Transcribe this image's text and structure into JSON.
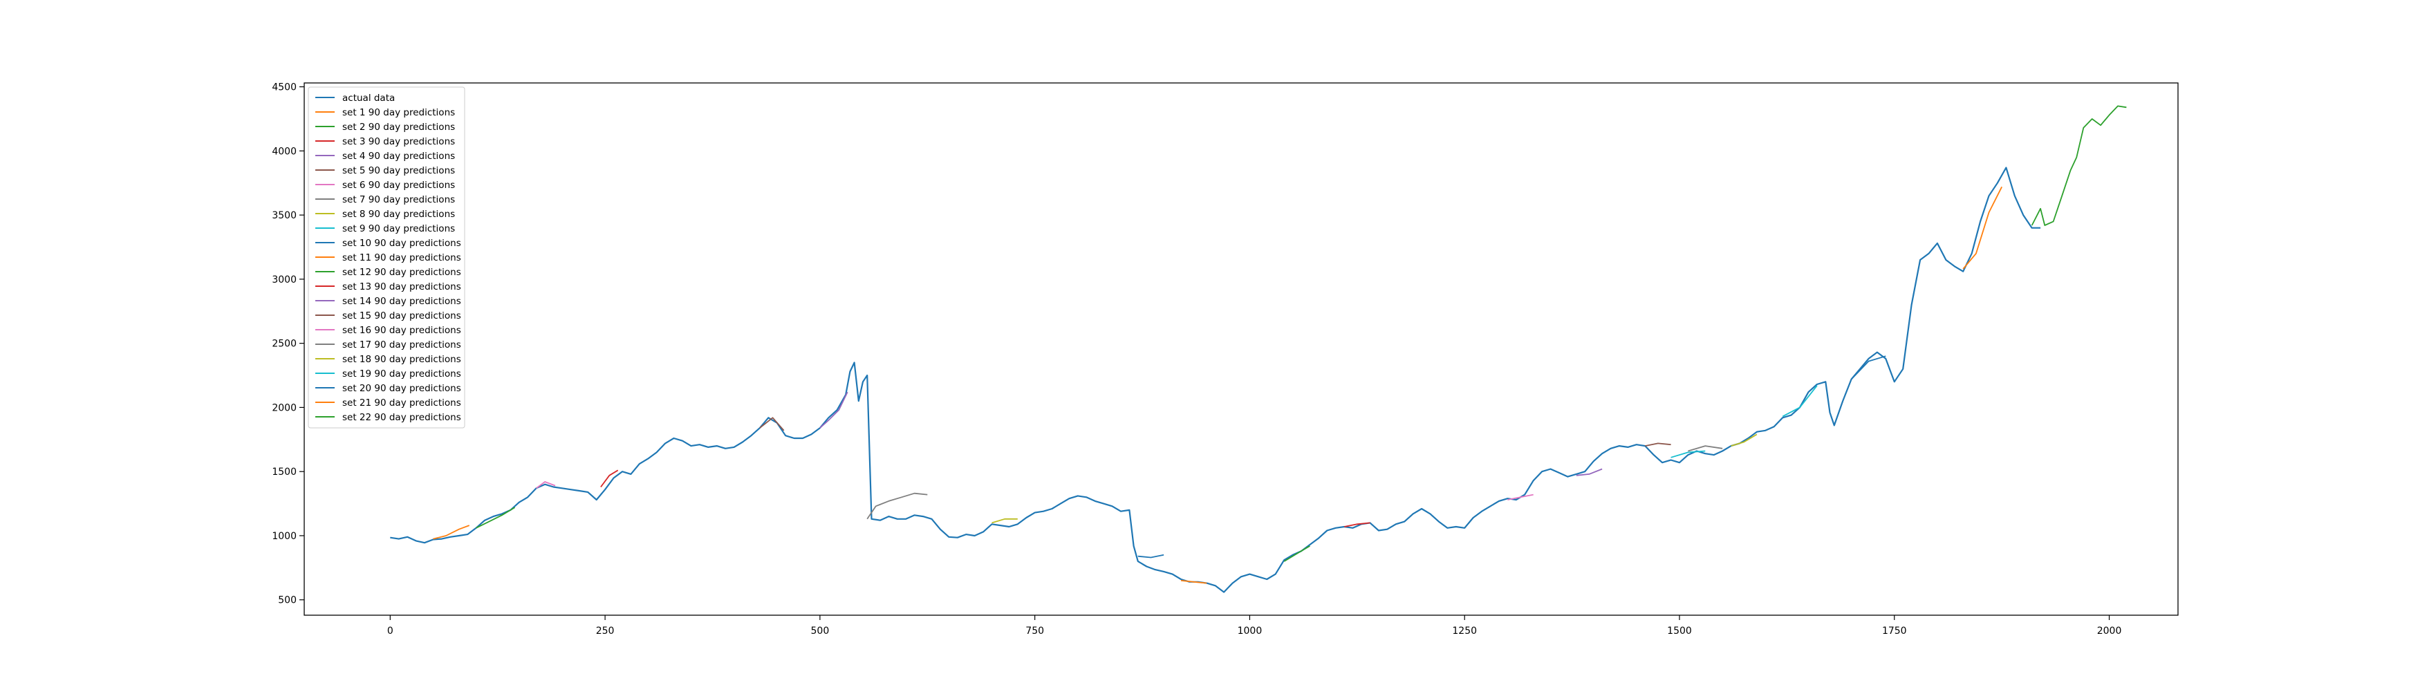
{
  "chart_data": {
    "type": "line",
    "title": "",
    "xlabel": "",
    "ylabel": "",
    "xlim": [
      -100,
      2080
    ],
    "ylim": [
      380,
      4530
    ],
    "x_ticks": [
      0,
      250,
      500,
      750,
      1000,
      1250,
      1500,
      1750,
      2000
    ],
    "y_ticks": [
      500,
      1000,
      1500,
      2000,
      2500,
      3000,
      3500,
      4000,
      4500
    ],
    "grid": false,
    "legend_position": "top-left",
    "actual": {
      "name": "actual data",
      "color": "#1f77b4",
      "points": [
        [
          0,
          985
        ],
        [
          10,
          975
        ],
        [
          20,
          990
        ],
        [
          30,
          960
        ],
        [
          40,
          945
        ],
        [
          50,
          970
        ],
        [
          60,
          975
        ],
        [
          70,
          990
        ],
        [
          80,
          1000
        ],
        [
          90,
          1010
        ],
        [
          100,
          1060
        ],
        [
          110,
          1120
        ],
        [
          120,
          1150
        ],
        [
          130,
          1170
        ],
        [
          140,
          1200
        ],
        [
          150,
          1260
        ],
        [
          160,
          1300
        ],
        [
          170,
          1370
        ],
        [
          180,
          1400
        ],
        [
          190,
          1380
        ],
        [
          200,
          1370
        ],
        [
          210,
          1360
        ],
        [
          220,
          1350
        ],
        [
          230,
          1340
        ],
        [
          240,
          1280
        ],
        [
          250,
          1360
        ],
        [
          260,
          1450
        ],
        [
          270,
          1500
        ],
        [
          280,
          1480
        ],
        [
          290,
          1560
        ],
        [
          300,
          1600
        ],
        [
          310,
          1650
        ],
        [
          320,
          1720
        ],
        [
          330,
          1760
        ],
        [
          340,
          1740
        ],
        [
          350,
          1700
        ],
        [
          360,
          1710
        ],
        [
          370,
          1690
        ],
        [
          380,
          1700
        ],
        [
          390,
          1680
        ],
        [
          400,
          1690
        ],
        [
          410,
          1730
        ],
        [
          420,
          1780
        ],
        [
          430,
          1840
        ],
        [
          440,
          1920
        ],
        [
          450,
          1880
        ],
        [
          460,
          1780
        ],
        [
          470,
          1760
        ],
        [
          480,
          1760
        ],
        [
          490,
          1790
        ],
        [
          500,
          1840
        ],
        [
          510,
          1920
        ],
        [
          520,
          1980
        ],
        [
          530,
          2100
        ],
        [
          535,
          2280
        ],
        [
          540,
          2350
        ],
        [
          545,
          2050
        ],
        [
          550,
          2200
        ],
        [
          555,
          2250
        ],
        [
          560,
          1130
        ],
        [
          570,
          1120
        ],
        [
          580,
          1150
        ],
        [
          590,
          1130
        ],
        [
          600,
          1130
        ],
        [
          610,
          1160
        ],
        [
          620,
          1150
        ],
        [
          630,
          1130
        ],
        [
          640,
          1050
        ],
        [
          650,
          990
        ],
        [
          660,
          985
        ],
        [
          670,
          1010
        ],
        [
          680,
          1000
        ],
        [
          690,
          1030
        ],
        [
          700,
          1090
        ],
        [
          710,
          1080
        ],
        [
          720,
          1070
        ],
        [
          730,
          1090
        ],
        [
          740,
          1140
        ],
        [
          750,
          1180
        ],
        [
          760,
          1190
        ],
        [
          770,
          1210
        ],
        [
          780,
          1250
        ],
        [
          790,
          1290
        ],
        [
          800,
          1310
        ],
        [
          810,
          1300
        ],
        [
          820,
          1270
        ],
        [
          830,
          1250
        ],
        [
          840,
          1230
        ],
        [
          850,
          1190
        ],
        [
          860,
          1200
        ],
        [
          865,
          920
        ],
        [
          870,
          800
        ],
        [
          880,
          760
        ],
        [
          890,
          735
        ],
        [
          900,
          720
        ],
        [
          910,
          700
        ],
        [
          920,
          660
        ],
        [
          930,
          640
        ],
        [
          940,
          640
        ],
        [
          950,
          630
        ],
        [
          960,
          610
        ],
        [
          970,
          560
        ],
        [
          980,
          630
        ],
        [
          990,
          680
        ],
        [
          1000,
          700
        ],
        [
          1010,
          680
        ],
        [
          1020,
          660
        ],
        [
          1030,
          700
        ],
        [
          1040,
          810
        ],
        [
          1050,
          850
        ],
        [
          1060,
          880
        ],
        [
          1070,
          930
        ],
        [
          1080,
          980
        ],
        [
          1090,
          1040
        ],
        [
          1100,
          1060
        ],
        [
          1110,
          1070
        ],
        [
          1120,
          1060
        ],
        [
          1130,
          1090
        ],
        [
          1140,
          1100
        ],
        [
          1150,
          1040
        ],
        [
          1160,
          1050
        ],
        [
          1170,
          1090
        ],
        [
          1180,
          1110
        ],
        [
          1190,
          1170
        ],
        [
          1200,
          1210
        ],
        [
          1210,
          1170
        ],
        [
          1220,
          1110
        ],
        [
          1230,
          1060
        ],
        [
          1240,
          1070
        ],
        [
          1250,
          1060
        ],
        [
          1260,
          1140
        ],
        [
          1270,
          1190
        ],
        [
          1280,
          1230
        ],
        [
          1290,
          1270
        ],
        [
          1300,
          1290
        ],
        [
          1310,
          1280
        ],
        [
          1320,
          1320
        ],
        [
          1330,
          1430
        ],
        [
          1340,
          1500
        ],
        [
          1350,
          1520
        ],
        [
          1360,
          1490
        ],
        [
          1370,
          1460
        ],
        [
          1380,
          1480
        ],
        [
          1390,
          1500
        ],
        [
          1400,
          1580
        ],
        [
          1410,
          1640
        ],
        [
          1420,
          1680
        ],
        [
          1430,
          1700
        ],
        [
          1440,
          1690
        ],
        [
          1450,
          1710
        ],
        [
          1460,
          1700
        ],
        [
          1470,
          1630
        ],
        [
          1480,
          1570
        ],
        [
          1490,
          1590
        ],
        [
          1500,
          1570
        ],
        [
          1510,
          1630
        ],
        [
          1520,
          1660
        ],
        [
          1530,
          1640
        ],
        [
          1540,
          1630
        ],
        [
          1550,
          1660
        ],
        [
          1560,
          1700
        ],
        [
          1570,
          1720
        ],
        [
          1580,
          1760
        ],
        [
          1590,
          1810
        ],
        [
          1600,
          1820
        ],
        [
          1610,
          1850
        ],
        [
          1620,
          1920
        ],
        [
          1630,
          1940
        ],
        [
          1640,
          2000
        ],
        [
          1650,
          2120
        ],
        [
          1660,
          2180
        ],
        [
          1670,
          2200
        ],
        [
          1675,
          1960
        ],
        [
          1680,
          1860
        ],
        [
          1690,
          2050
        ],
        [
          1700,
          2220
        ],
        [
          1710,
          2300
        ],
        [
          1720,
          2380
        ],
        [
          1730,
          2430
        ],
        [
          1740,
          2380
        ],
        [
          1750,
          2200
        ],
        [
          1760,
          2300
        ],
        [
          1770,
          2800
        ],
        [
          1780,
          3150
        ],
        [
          1790,
          3200
        ],
        [
          1800,
          3280
        ],
        [
          1810,
          3150
        ],
        [
          1820,
          3100
        ],
        [
          1830,
          3060
        ],
        [
          1840,
          3200
        ],
        [
          1850,
          3450
        ],
        [
          1860,
          3650
        ],
        [
          1870,
          3750
        ],
        [
          1880,
          3870
        ],
        [
          1890,
          3650
        ],
        [
          1900,
          3500
        ],
        [
          1910,
          3400
        ],
        [
          1920,
          3400
        ]
      ]
    },
    "predictions": [
      {
        "name": "set 1 90 day predictions",
        "color": "#ff7f0e",
        "points": [
          [
            50,
            975
          ],
          [
            65,
            1000
          ],
          [
            80,
            1050
          ],
          [
            92,
            1080
          ]
        ]
      },
      {
        "name": "set 2 90 day predictions",
        "color": "#2ca02c",
        "points": [
          [
            100,
            1060
          ],
          [
            115,
            1110
          ],
          [
            130,
            1160
          ],
          [
            145,
            1220
          ]
        ]
      },
      {
        "name": "set 3 90 day predictions",
        "color": "#d62728",
        "points": [
          [
            245,
            1380
          ],
          [
            255,
            1470
          ],
          [
            265,
            1510
          ]
        ]
      },
      {
        "name": "set 4 90 day predictions",
        "color": "#9467bd",
        "points": [
          [
            500,
            1840
          ],
          [
            510,
            1900
          ],
          [
            522,
            1980
          ],
          [
            532,
            2120
          ]
        ]
      },
      {
        "name": "set 5 90 day predictions",
        "color": "#8c564b",
        "points": [
          [
            430,
            1840
          ],
          [
            445,
            1920
          ],
          [
            458,
            1820
          ]
        ]
      },
      {
        "name": "set 6 90 day predictions",
        "color": "#e377c2",
        "points": [
          [
            170,
            1370
          ],
          [
            180,
            1420
          ],
          [
            192,
            1390
          ]
        ]
      },
      {
        "name": "set 7 90 day predictions",
        "color": "#7f7f7f",
        "points": [
          [
            555,
            1130
          ],
          [
            565,
            1230
          ],
          [
            580,
            1270
          ],
          [
            595,
            1300
          ],
          [
            610,
            1330
          ],
          [
            625,
            1320
          ]
        ]
      },
      {
        "name": "set 8 90 day predictions",
        "color": "#bcbd22",
        "points": [
          [
            700,
            1100
          ],
          [
            715,
            1130
          ],
          [
            730,
            1130
          ]
        ]
      },
      {
        "name": "set 9 90 day predictions",
        "color": "#17becf",
        "points": [
          [
            1490,
            1610
          ],
          [
            1510,
            1650
          ],
          [
            1530,
            1660
          ]
        ]
      },
      {
        "name": "set 10 90 day predictions",
        "color": "#1f77b4",
        "points": [
          [
            870,
            840
          ],
          [
            885,
            830
          ],
          [
            900,
            850
          ]
        ]
      },
      {
        "name": "set 11 90 day predictions",
        "color": "#ff7f0e",
        "points": [
          [
            920,
            650
          ],
          [
            935,
            640
          ],
          [
            950,
            630
          ]
        ]
      },
      {
        "name": "set 12 90 day predictions",
        "color": "#2ca02c",
        "points": [
          [
            1040,
            800
          ],
          [
            1055,
            860
          ],
          [
            1070,
            920
          ]
        ]
      },
      {
        "name": "set 13 90 day predictions",
        "color": "#d62728",
        "points": [
          [
            1110,
            1070
          ],
          [
            1125,
            1090
          ],
          [
            1140,
            1100
          ]
        ]
      },
      {
        "name": "set 14 90 day predictions",
        "color": "#9467bd",
        "points": [
          [
            1380,
            1470
          ],
          [
            1395,
            1480
          ],
          [
            1410,
            1520
          ]
        ]
      },
      {
        "name": "set 15 90 day predictions",
        "color": "#8c564b",
        "points": [
          [
            1460,
            1700
          ],
          [
            1475,
            1720
          ],
          [
            1490,
            1710
          ]
        ]
      },
      {
        "name": "set 16 90 day predictions",
        "color": "#e377c2",
        "points": [
          [
            1300,
            1280
          ],
          [
            1315,
            1300
          ],
          [
            1330,
            1320
          ]
        ]
      },
      {
        "name": "set 17 90 day predictions",
        "color": "#7f7f7f",
        "points": [
          [
            1510,
            1660
          ],
          [
            1530,
            1700
          ],
          [
            1550,
            1680
          ]
        ]
      },
      {
        "name": "set 18 90 day predictions",
        "color": "#bcbd22",
        "points": [
          [
            1560,
            1700
          ],
          [
            1575,
            1730
          ],
          [
            1590,
            1790
          ]
        ]
      },
      {
        "name": "set 19 90 day predictions",
        "color": "#17becf",
        "points": [
          [
            1620,
            1930
          ],
          [
            1640,
            2000
          ],
          [
            1660,
            2170
          ]
        ]
      },
      {
        "name": "set 20 90 day predictions",
        "color": "#1f77b4",
        "points": [
          [
            1700,
            2220
          ],
          [
            1720,
            2360
          ],
          [
            1740,
            2400
          ]
        ]
      },
      {
        "name": "set 21 90 day predictions",
        "color": "#ff7f0e",
        "points": [
          [
            1830,
            3080
          ],
          [
            1845,
            3200
          ],
          [
            1860,
            3520
          ],
          [
            1875,
            3720
          ]
        ]
      },
      {
        "name": "set 22 90 day predictions",
        "color": "#2ca02c",
        "points": [
          [
            1910,
            3420
          ],
          [
            1920,
            3550
          ],
          [
            1925,
            3420
          ],
          [
            1935,
            3450
          ],
          [
            1945,
            3650
          ],
          [
            1955,
            3850
          ],
          [
            1962,
            3950
          ],
          [
            1970,
            4180
          ],
          [
            1980,
            4250
          ],
          [
            1990,
            4200
          ],
          [
            2000,
            4280
          ],
          [
            2010,
            4350
          ],
          [
            2020,
            4340
          ]
        ]
      }
    ]
  }
}
